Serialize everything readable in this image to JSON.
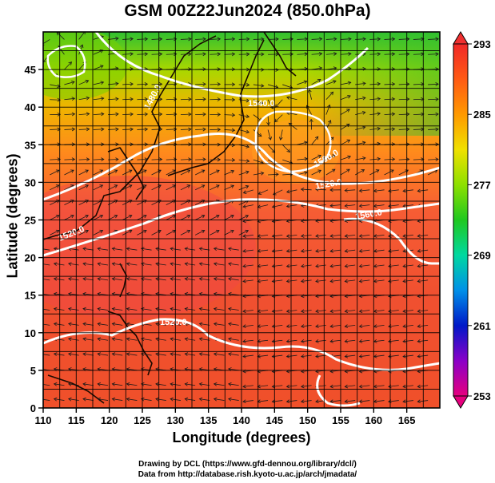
{
  "chart_data": {
    "type": "heatmap",
    "title": "GSM 00Z22Jun2024 (850.0hPa)",
    "xlabel": "Longitude (degrees)",
    "ylabel": "Latitude  (degrees)",
    "xlim": [
      110,
      170
    ],
    "ylim": [
      0,
      50
    ],
    "x_ticks": [
      110,
      115,
      120,
      125,
      130,
      135,
      140,
      145,
      150,
      155,
      160,
      165
    ],
    "y_ticks": [
      0,
      5,
      10,
      15,
      20,
      25,
      30,
      35,
      40,
      45
    ],
    "grid": true,
    "colorbar": {
      "ticks": [
        293,
        285,
        277,
        269,
        261,
        253
      ],
      "min": 253,
      "max": 293,
      "colors": [
        "#e6007e",
        "#8a00c8",
        "#0018c8",
        "#0090e8",
        "#00d8a0",
        "#20c820",
        "#8ee000",
        "#f0e000",
        "#ff9900",
        "#ff5a14",
        "#f02828"
      ]
    },
    "contour_labels": [
      "1520.0",
      "1520.0",
      "1520.0",
      "1540.0",
      "1560.0",
      "1480.0",
      "1500.0"
    ]
  },
  "credits": {
    "line1": "Drawing by DCL (https://www.gfd-dennou.org/library/dcl/)",
    "line2": "Data from http://database.rish.kyoto-u.ac.jp/arch/jmadata/"
  }
}
